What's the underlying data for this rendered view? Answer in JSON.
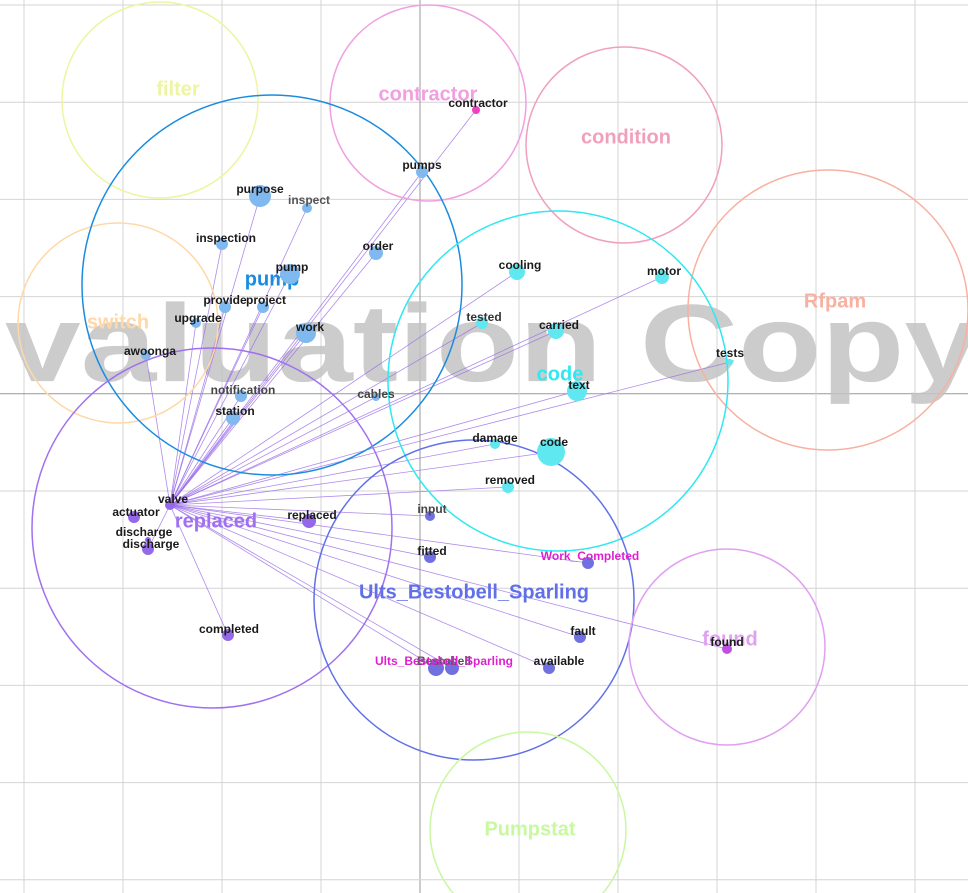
{
  "watermark": "valuation Copy",
  "clusters": [
    {
      "label": "filter"
    },
    {
      "label": "contractor"
    },
    {
      "label": "condition"
    },
    {
      "label": "Rfpam"
    },
    {
      "label": "switch"
    },
    {
      "label": "pump"
    },
    {
      "label": "code"
    },
    {
      "label": "replaced"
    },
    {
      "label": "Ults_Bestobell_Sparling"
    },
    {
      "label": "found"
    },
    {
      "label": "Pumpstat"
    }
  ],
  "nodes": [
    {
      "label": "contractor"
    },
    {
      "label": "pumps"
    },
    {
      "label": "purpose"
    },
    {
      "label": "inspect"
    },
    {
      "label": "inspection"
    },
    {
      "label": "order"
    },
    {
      "label": "pump"
    },
    {
      "label": "provide"
    },
    {
      "label": "project"
    },
    {
      "label": "upgrade"
    },
    {
      "label": "work"
    },
    {
      "label": "awoonga"
    },
    {
      "label": "notification"
    },
    {
      "label": "cables"
    },
    {
      "label": "station"
    },
    {
      "label": "cooling"
    },
    {
      "label": "motor"
    },
    {
      "label": "tested"
    },
    {
      "label": "carried"
    },
    {
      "label": "tests"
    },
    {
      "label": "text"
    },
    {
      "label": "damage"
    },
    {
      "label": "code"
    },
    {
      "label": "removed"
    },
    {
      "label": "valve"
    },
    {
      "label": "actuator"
    },
    {
      "label": "discharge"
    },
    {
      "label": "discharge"
    },
    {
      "label": "replaced"
    },
    {
      "label": "input"
    },
    {
      "label": "fitted"
    },
    {
      "label": "Work_Completed"
    },
    {
      "label": "completed"
    },
    {
      "label": "fault"
    },
    {
      "label": "found"
    },
    {
      "label": "Bestobell"
    },
    {
      "label": "Ults_Bestobell_Sparling"
    },
    {
      "label": "available"
    }
  ]
}
